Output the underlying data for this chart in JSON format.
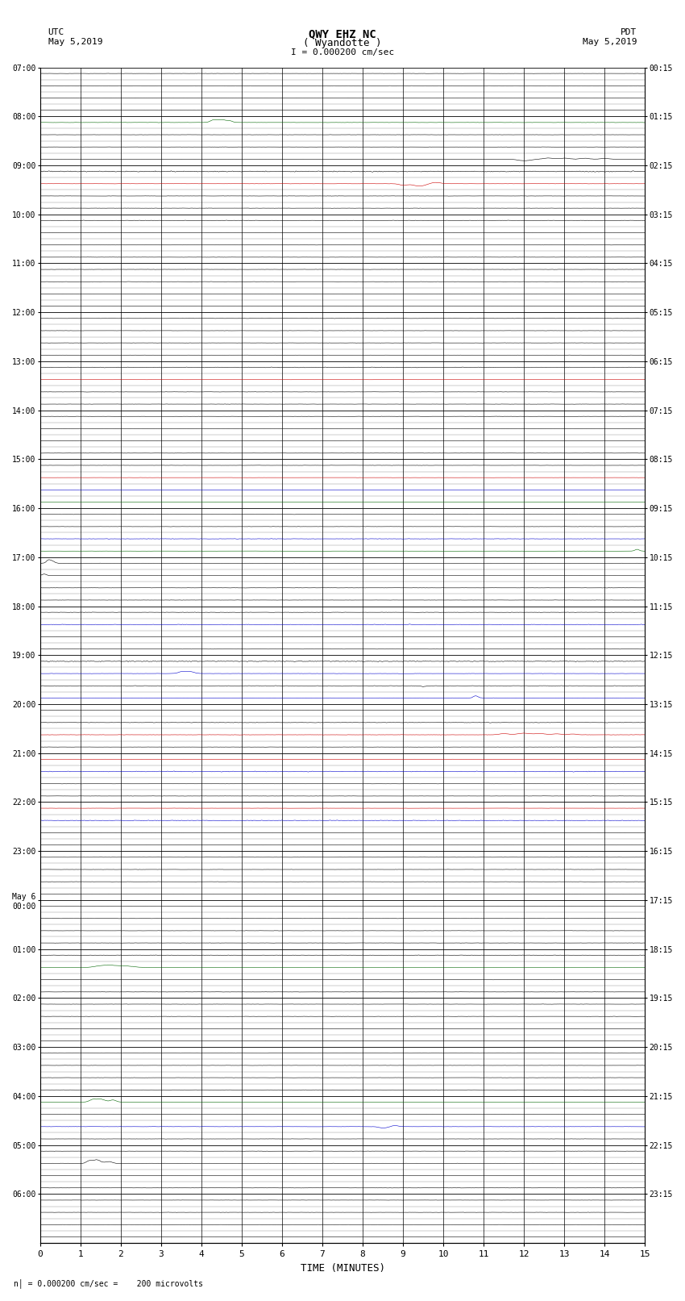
{
  "title_line1": "QWY EHZ NC",
  "title_line2": "( Wyandotte )",
  "scale_text": "I = 0.000200 cm/sec",
  "bottom_label": "n│ = 0.000200 cm/sec =    200 microvolts",
  "xlabel": "TIME (MINUTES)",
  "num_rows": 24,
  "minutes_per_row": 15,
  "sub_lines_per_row": 4,
  "background": "#ffffff",
  "fig_width": 8.5,
  "fig_height": 16.13,
  "dpi": 100,
  "utc_labels": [
    "07:00",
    "08:00",
    "09:00",
    "10:00",
    "11:00",
    "12:00",
    "13:00",
    "14:00",
    "15:00",
    "16:00",
    "17:00",
    "18:00",
    "19:00",
    "20:00",
    "21:00",
    "22:00",
    "23:00",
    "May 6\n00:00",
    "01:00",
    "02:00",
    "03:00",
    "04:00",
    "05:00",
    "06:00"
  ],
  "pdt_labels": [
    "00:15",
    "01:15",
    "02:15",
    "03:15",
    "04:15",
    "05:15",
    "06:15",
    "07:15",
    "08:15",
    "09:15",
    "10:15",
    "11:15",
    "12:15",
    "13:15",
    "14:15",
    "15:15",
    "16:15",
    "17:15",
    "18:15",
    "19:15",
    "20:15",
    "21:15",
    "22:15",
    "23:15"
  ],
  "BLACK": "#000000",
  "RED": "#cc0000",
  "BLUE": "#0000cc",
  "GREEN": "#006600",
  "DKRED": "#880000"
}
